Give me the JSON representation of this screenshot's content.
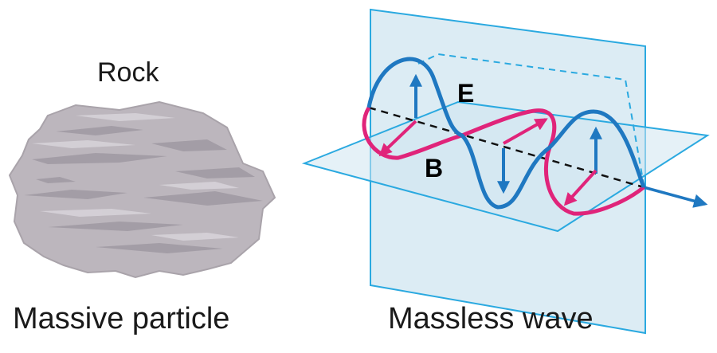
{
  "rock": {
    "title": "Rock",
    "caption": "Massive particle"
  },
  "wave": {
    "caption": "Massless wave",
    "e_label": "E",
    "b_label": "B"
  },
  "colors": {
    "electric": "#1f78c1",
    "magnetic": "#e0247a",
    "plane_stroke": "#2aa9e0",
    "plane_fill": "#dcecf4",
    "rock_fill": "#bcb6bd"
  }
}
